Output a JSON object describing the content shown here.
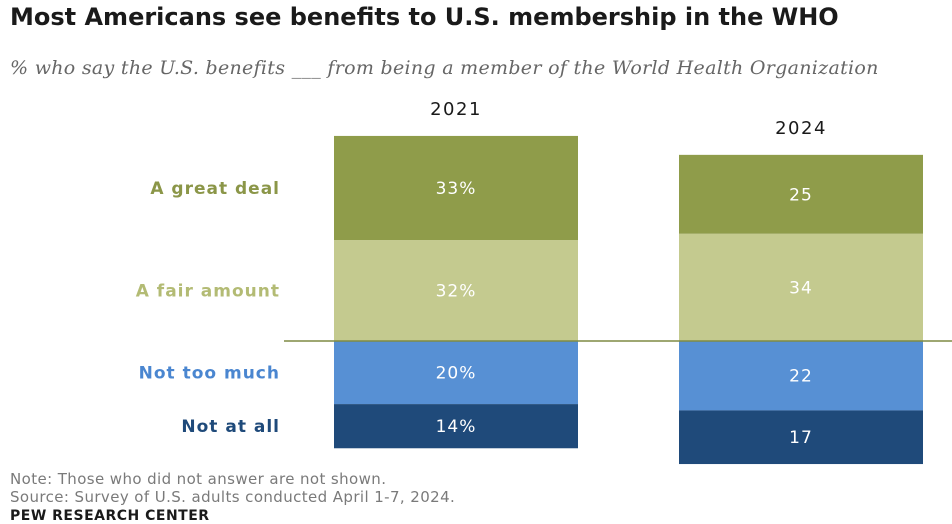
{
  "header": {
    "title": "Most Americans see benefits to U.S. membership in the WHO",
    "subtitle": "% who say the U.S. benefits ___ from being a member of the World Health Organization"
  },
  "footer": {
    "note": "Note: Those who did not answer are not shown.",
    "source": "Source: Survey of U.S. adults conducted April 1-7, 2024.",
    "brand": "PEW RESEARCH CENTER"
  },
  "colors": {
    "a_great_deal": "#8f9c4a",
    "a_fair_amount": "#c4ca8f",
    "not_too_much": "#5790d4",
    "not_at_all": "#1f4a7a",
    "label_a_great_deal": "#8b9648",
    "label_a_fair_amount": "#b3bb74",
    "label_not_too_much": "#4a86d0",
    "label_not_at_all": "#1f4a7a",
    "divider": "#7f8a44"
  },
  "chart_data": {
    "type": "bar",
    "stacked": true,
    "diverging": true,
    "categories": [
      "2021",
      "2024"
    ],
    "series": [
      {
        "name": "A great deal",
        "values": [
          33,
          25
        ],
        "labels": [
          "33%",
          "25"
        ],
        "side": "positive"
      },
      {
        "name": "A fair amount",
        "values": [
          32,
          34
        ],
        "labels": [
          "32%",
          "34"
        ],
        "side": "positive"
      },
      {
        "name": "Not too much",
        "values": [
          20,
          22
        ],
        "labels": [
          "20%",
          "22"
        ],
        "side": "negative"
      },
      {
        "name": "Not at all",
        "values": [
          14,
          17
        ],
        "labels": [
          "14%",
          "17"
        ],
        "side": "negative"
      }
    ],
    "legend_placement": "left",
    "grid": false
  }
}
